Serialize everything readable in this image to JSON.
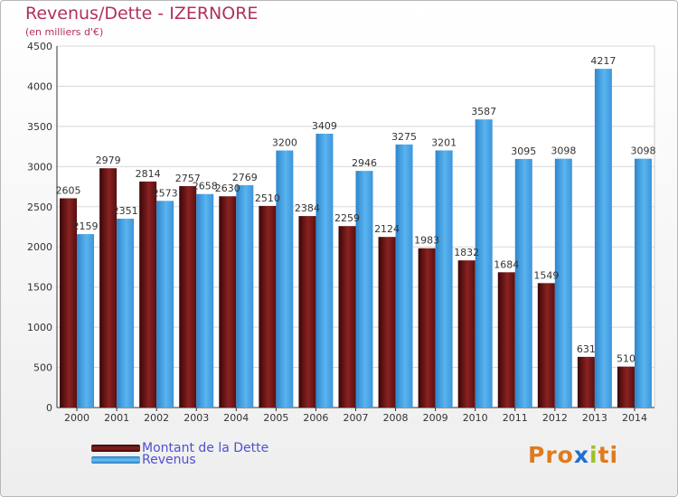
{
  "header": {
    "title": "Revenus/Dette - IZERNORE",
    "subtitle": "(en milliers d'€)"
  },
  "legend": {
    "dette_label": "Montant de la Dette",
    "revenus_label": "Revenus"
  },
  "logo": {
    "text": "Proxiti",
    "colors": [
      "#e07a1e",
      "#e07a1e",
      "#e07a1e",
      "#1f6fd1",
      "#a0c02a",
      "#e07a1e",
      "#e07a1e"
    ]
  },
  "colors": {
    "dette": "#7a1818",
    "revenus": "#4aa3e6",
    "title": "#b03060",
    "legend_text": "#5050d0"
  },
  "chart_data": {
    "type": "bar",
    "categories": [
      "2000",
      "2001",
      "2002",
      "2003",
      "2004",
      "2005",
      "2006",
      "2007",
      "2008",
      "2009",
      "2010",
      "2011",
      "2012",
      "2013",
      "2014"
    ],
    "series": [
      {
        "name": "Montant de la Dette",
        "values": [
          2605,
          2979,
          2814,
          2757,
          2630,
          2510,
          2384,
          2259,
          2124,
          1983,
          1832,
          1684,
          1549,
          631,
          510
        ]
      },
      {
        "name": "Revenus",
        "values": [
          2159,
          2351,
          2573,
          2658,
          2769,
          3200,
          3409,
          2946,
          3275,
          3201,
          3587,
          3095,
          3098,
          4217,
          3098
        ]
      }
    ],
    "data_labels": [
      [
        "2605",
        "2979",
        "2814",
        "2757",
        "2630",
        "2510",
        "2384",
        "2259",
        "2124",
        "1983",
        "1832",
        "1684",
        "1549",
        "631",
        "510"
      ],
      [
        "2159",
        "2351",
        "2573",
        "2658",
        "2769",
        "3200",
        "3409",
        "2946",
        "3275",
        "3201",
        "3587",
        "3095",
        "3098",
        "4217",
        "3098"
      ]
    ],
    "ylim": [
      0,
      4500
    ],
    "yticks": [
      0,
      500,
      1000,
      1500,
      2000,
      2500,
      3000,
      3500,
      4000,
      4500
    ],
    "grid": true,
    "legend_position": "bottom-left"
  }
}
